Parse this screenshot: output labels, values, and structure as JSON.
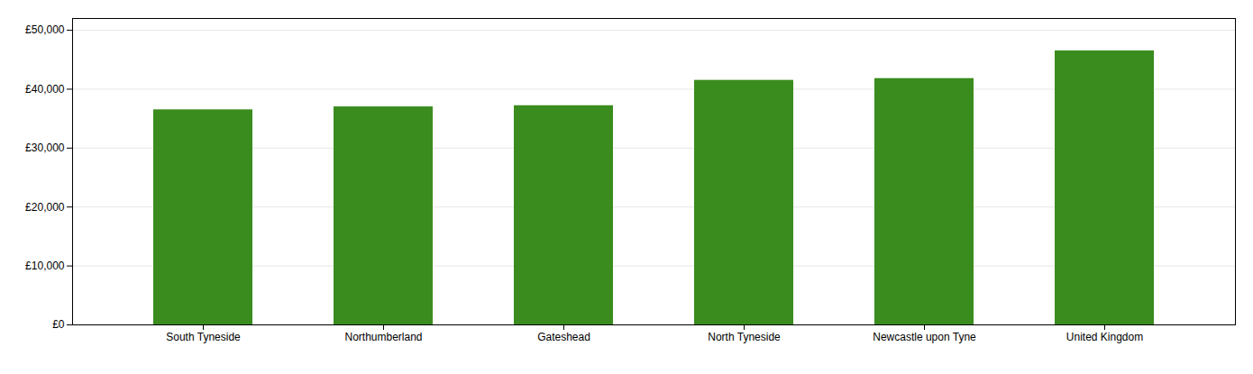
{
  "chart_data": {
    "type": "bar",
    "categories": [
      "South Tyneside",
      "Northumberland",
      "Gateshead",
      "North Tyneside",
      "Newcastle upon Tyne",
      "United Kingdom"
    ],
    "values": [
      36500,
      37000,
      37200,
      41500,
      41800,
      46500
    ],
    "color": "#3a8c1e",
    "ylim": [
      0,
      52000
    ],
    "yticks": [
      {
        "value": 0,
        "label": "£0"
      },
      {
        "value": 10000,
        "label": "£10,000"
      },
      {
        "value": 20000,
        "label": "£20,000"
      },
      {
        "value": 30000,
        "label": "£30,000"
      },
      {
        "value": 40000,
        "label": "£40,000"
      },
      {
        "value": 50000,
        "label": "£50,000"
      }
    ],
    "grid": true
  }
}
